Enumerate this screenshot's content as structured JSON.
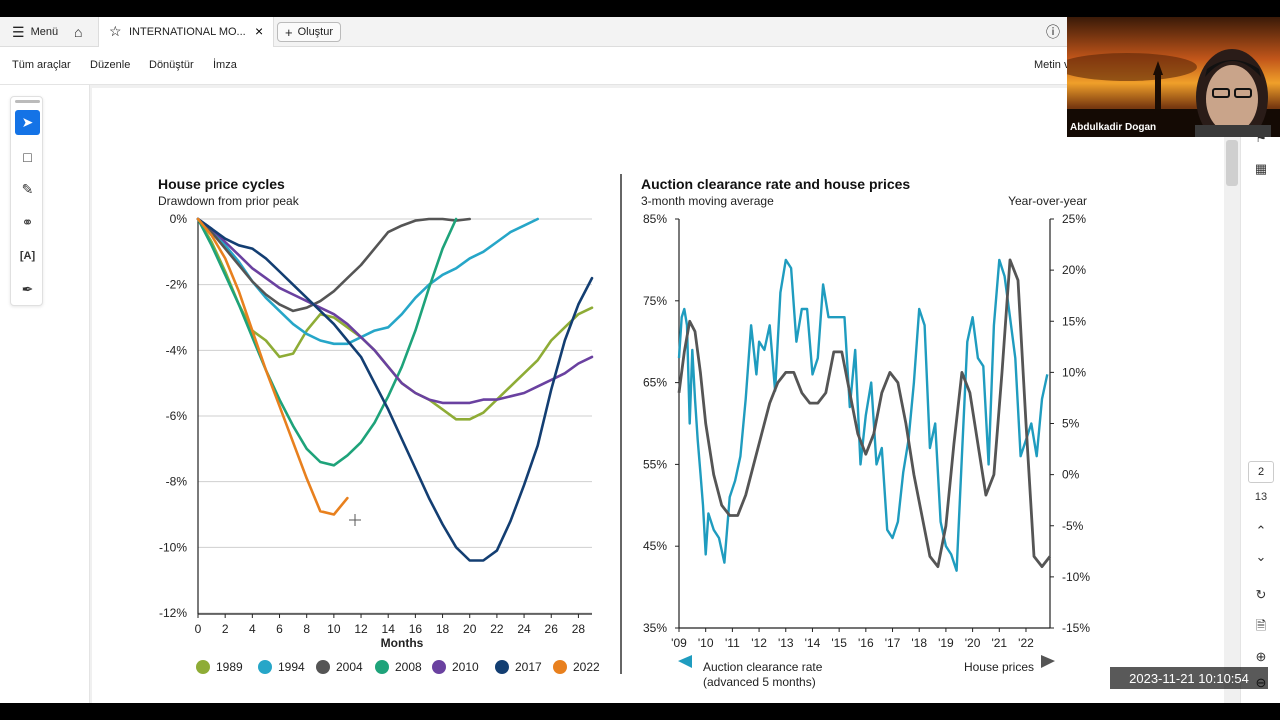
{
  "app": {
    "menu_label": "Menü",
    "tab_title": "INTERNATIONAL MO...",
    "create_label": "Oluştur",
    "toolbar": [
      "Tüm araçlar",
      "Düzenle",
      "Dönüştür",
      "İmza"
    ],
    "right_label": "Metin v",
    "page_current": "2",
    "page_total": "13"
  },
  "video": {
    "name": "Abdulkadir Dogan",
    "timestamp": "2023-11-21  10:10:54"
  },
  "colors": {
    "1989": "#8eac36",
    "1994": "#26a6c8",
    "2004": "#555555",
    "2008": "#1ea37a",
    "2010": "#6a41a0",
    "2017": "#133e72",
    "2022": "#e8801e",
    "auction": "#1f9cbf",
    "house": "#555555"
  },
  "chart_data": [
    {
      "type": "line",
      "title": "House price cycles",
      "subtitle": "Drawdown from prior peak",
      "xlabel": "Months",
      "ylabel": "",
      "xlim": [
        0,
        29
      ],
      "ylim": [
        -12,
        0
      ],
      "x_ticks": [
        "0",
        "2",
        "4",
        "6",
        "8",
        "10",
        "12",
        "14",
        "16",
        "18",
        "20",
        "22",
        "24",
        "26",
        "28"
      ],
      "y_ticks": [
        "0%",
        "-2%",
        "-4%",
        "-6%",
        "-8%",
        "-10%",
        "-12%"
      ],
      "series": [
        {
          "name": "1989",
          "x": [
            0,
            1,
            2,
            3,
            4,
            5,
            6,
            7,
            8,
            9,
            10,
            11,
            12,
            13,
            14,
            15,
            16,
            17,
            18,
            19,
            20,
            21,
            22,
            23,
            24,
            25,
            26,
            27,
            28,
            29
          ],
          "y": [
            0,
            -0.7,
            -1.6,
            -2.6,
            -3.4,
            -3.7,
            -4.2,
            -4.1,
            -3.4,
            -2.9,
            -3.0,
            -3.3,
            -3.6,
            -4.0,
            -4.5,
            -5.0,
            -5.3,
            -5.5,
            -5.8,
            -6.1,
            -6.1,
            -5.9,
            -5.5,
            -5.1,
            -4.7,
            -4.3,
            -3.7,
            -3.3,
            -2.9,
            -2.7
          ]
        },
        {
          "name": "1994",
          "x": [
            0,
            1,
            2,
            3,
            4,
            5,
            6,
            7,
            8,
            9,
            10,
            11,
            12,
            13,
            14,
            15,
            16,
            17,
            18,
            19,
            20,
            21,
            22,
            23,
            24,
            25
          ],
          "y": [
            0,
            -0.3,
            -0.8,
            -1.3,
            -1.9,
            -2.4,
            -2.8,
            -3.2,
            -3.5,
            -3.7,
            -3.8,
            -3.8,
            -3.6,
            -3.4,
            -3.3,
            -2.9,
            -2.4,
            -2.0,
            -1.7,
            -1.5,
            -1.2,
            -1.0,
            -0.7,
            -0.4,
            -0.2,
            0
          ]
        },
        {
          "name": "2004",
          "x": [
            0,
            1,
            2,
            3,
            4,
            5,
            6,
            7,
            8,
            9,
            10,
            11,
            12,
            13,
            14,
            15,
            16,
            17,
            18,
            19,
            20
          ],
          "y": [
            0,
            -0.4,
            -0.9,
            -1.4,
            -1.9,
            -2.3,
            -2.6,
            -2.8,
            -2.7,
            -2.5,
            -2.2,
            -1.8,
            -1.4,
            -0.9,
            -0.4,
            -0.2,
            -0.05,
            0,
            0,
            -0.05,
            0
          ]
        },
        {
          "name": "2008",
          "x": [
            0,
            1,
            2,
            3,
            4,
            5,
            6,
            7,
            8,
            9,
            10,
            11,
            12,
            13,
            14,
            15,
            16,
            17,
            18,
            19
          ],
          "y": [
            0,
            -0.8,
            -1.7,
            -2.6,
            -3.6,
            -4.6,
            -5.5,
            -6.3,
            -7.0,
            -7.4,
            -7.5,
            -7.2,
            -6.8,
            -6.2,
            -5.4,
            -4.5,
            -3.4,
            -2.1,
            -0.9,
            0
          ]
        },
        {
          "name": "2010",
          "x": [
            0,
            1,
            2,
            3,
            4,
            5,
            6,
            7,
            8,
            9,
            10,
            11,
            12,
            13,
            14,
            15,
            16,
            17,
            18,
            19,
            20,
            21,
            22,
            23,
            24,
            25,
            26,
            27,
            28,
            29
          ],
          "y": [
            0,
            -0.3,
            -0.7,
            -1.1,
            -1.5,
            -1.8,
            -2.1,
            -2.3,
            -2.5,
            -2.7,
            -2.9,
            -3.2,
            -3.6,
            -4.0,
            -4.5,
            -5.0,
            -5.3,
            -5.5,
            -5.6,
            -5.6,
            -5.6,
            -5.5,
            -5.5,
            -5.4,
            -5.3,
            -5.1,
            -4.9,
            -4.7,
            -4.4,
            -4.2
          ]
        },
        {
          "name": "2017",
          "x": [
            0,
            1,
            2,
            3,
            4,
            5,
            6,
            7,
            8,
            9,
            10,
            11,
            12,
            13,
            14,
            15,
            16,
            17,
            18,
            19,
            20,
            21,
            22,
            23,
            24,
            25,
            26,
            27,
            28,
            29
          ],
          "y": [
            0,
            -0.3,
            -0.6,
            -0.8,
            -0.9,
            -1.2,
            -1.6,
            -2.0,
            -2.4,
            -2.8,
            -3.2,
            -3.7,
            -4.2,
            -5.0,
            -5.8,
            -6.7,
            -7.6,
            -8.5,
            -9.3,
            -10.0,
            -10.4,
            -10.4,
            -10.1,
            -9.2,
            -8.1,
            -6.9,
            -5.2,
            -3.7,
            -2.6,
            -1.8
          ]
        },
        {
          "name": "2022",
          "x": [
            0,
            1,
            2,
            3,
            4,
            5,
            6,
            7,
            8,
            9,
            10,
            11
          ],
          "y": [
            0,
            -0.5,
            -1.2,
            -2.2,
            -3.4,
            -4.6,
            -5.7,
            -6.8,
            -7.9,
            -8.9,
            -9.0,
            -8.5
          ]
        }
      ],
      "legend_placement": "bottom",
      "grid": true
    },
    {
      "type": "line",
      "title": "Auction clearance rate and house prices",
      "subtitle": "3-month moving average",
      "right_subtitle": "Year-over-year",
      "xlabel": "",
      "x_ticks": [
        "'09",
        "'10",
        "'11",
        "'12",
        "'13",
        "'14",
        "'15",
        "'16",
        "'17",
        "'18",
        "'19",
        "'20",
        "'21",
        "'22"
      ],
      "xlim": [
        2009,
        2022.9
      ],
      "y_left_ticks": [
        "85%",
        "75%",
        "65%",
        "55%",
        "45%",
        "35%"
      ],
      "y_left_lim": [
        35,
        85
      ],
      "y_right_ticks": [
        "25%",
        "20%",
        "15%",
        "10%",
        "5%",
        "0%",
        "-5%",
        "-10%",
        "-15%"
      ],
      "y_right_lim": [
        -15,
        25
      ],
      "series": [
        {
          "name": "Auction clearance rate",
          "axis": "left",
          "label_extra": "(advanced 5 months)",
          "x": [
            2009.0,
            2009.1,
            2009.2,
            2009.3,
            2009.4,
            2009.5,
            2009.6,
            2009.7,
            2009.8,
            2009.9,
            2010.0,
            2010.1,
            2010.3,
            2010.5,
            2010.7,
            2010.9,
            2011.0,
            2011.1,
            2011.3,
            2011.5,
            2011.7,
            2011.9,
            2012.0,
            2012.2,
            2012.4,
            2012.6,
            2012.8,
            2013.0,
            2013.2,
            2013.4,
            2013.6,
            2013.8,
            2014.0,
            2014.2,
            2014.4,
            2014.6,
            2014.8,
            2015.0,
            2015.2,
            2015.4,
            2015.6,
            2015.8,
            2016.0,
            2016.2,
            2016.4,
            2016.6,
            2016.8,
            2017.0,
            2017.2,
            2017.4,
            2017.6,
            2017.8,
            2018.0,
            2018.2,
            2018.4,
            2018.6,
            2018.8,
            2019.0,
            2019.2,
            2019.4,
            2019.6,
            2019.8,
            2020.0,
            2020.2,
            2020.4,
            2020.6,
            2020.8,
            2021.0,
            2021.2,
            2021.4,
            2021.6,
            2021.8,
            2022.0,
            2022.2,
            2022.4,
            2022.6,
            2022.8
          ],
          "y": [
            68,
            73,
            74,
            72,
            60,
            69,
            63,
            58,
            54,
            50,
            44,
            49,
            47,
            46,
            43,
            51,
            52,
            53,
            56,
            63,
            72,
            66,
            70,
            69,
            72,
            64,
            76,
            80,
            79,
            70,
            74,
            74,
            66,
            68,
            77,
            73,
            73,
            73,
            73,
            62,
            69,
            55,
            61,
            65,
            55,
            57,
            47,
            46,
            48,
            54,
            58,
            65,
            74,
            72,
            57,
            60,
            48,
            45,
            44,
            42,
            56,
            70,
            73,
            68,
            67,
            55,
            72,
            80,
            78,
            73,
            68,
            56,
            58,
            60,
            56,
            63,
            66
          ]
        },
        {
          "name": "House prices",
          "axis": "right",
          "x": [
            2009.0,
            2009.2,
            2009.4,
            2009.6,
            2009.8,
            2010.0,
            2010.3,
            2010.6,
            2010.9,
            2011.2,
            2011.5,
            2011.8,
            2012.1,
            2012.4,
            2012.7,
            2013.0,
            2013.3,
            2013.6,
            2013.9,
            2014.2,
            2014.5,
            2014.8,
            2015.1,
            2015.4,
            2015.7,
            2016.0,
            2016.3,
            2016.6,
            2016.9,
            2017.2,
            2017.5,
            2017.8,
            2018.1,
            2018.4,
            2018.7,
            2019.0,
            2019.3,
            2019.6,
            2019.9,
            2020.2,
            2020.5,
            2020.8,
            2021.1,
            2021.4,
            2021.7,
            2022.0,
            2022.3,
            2022.6,
            2022.9
          ],
          "y": [
            8,
            12,
            15,
            14,
            10,
            5,
            0,
            -3,
            -4,
            -4,
            -2,
            1,
            4,
            7,
            9,
            10,
            10,
            8,
            7,
            7,
            8,
            12,
            12,
            8,
            4,
            2,
            4,
            8,
            10,
            9,
            5,
            0,
            -4,
            -8,
            -9,
            -5,
            3,
            10,
            8,
            3,
            -2,
            0,
            10,
            21,
            19,
            5,
            -8,
            -9,
            -8
          ]
        }
      ],
      "legend_placement": "bottom"
    }
  ]
}
